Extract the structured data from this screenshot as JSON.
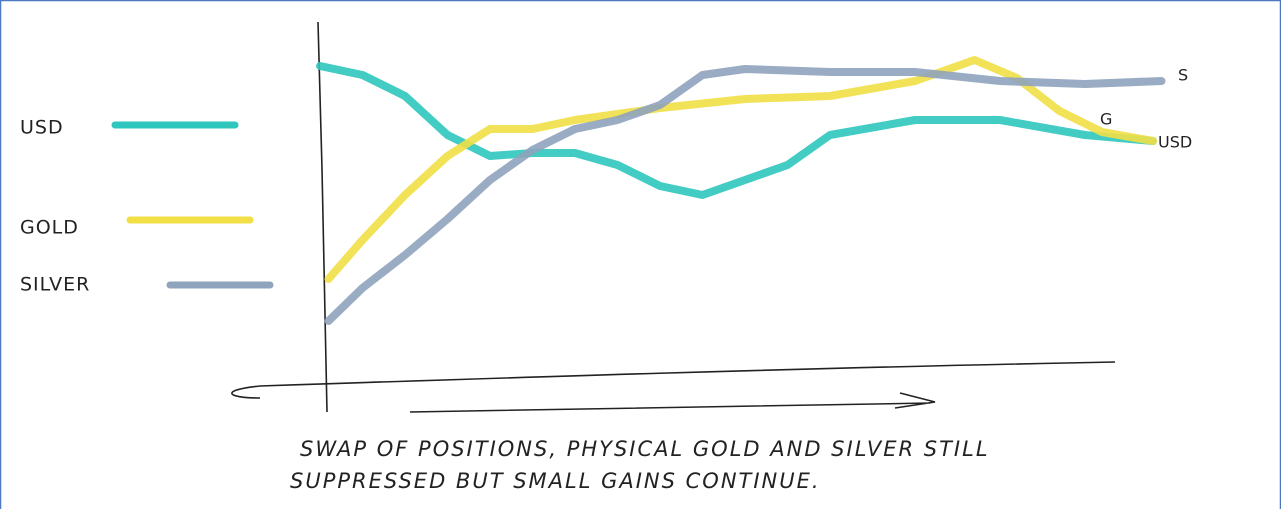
{
  "chart_data": {
    "type": "line",
    "xlim": [
      0,
      100
    ],
    "ylim": [
      0,
      100
    ],
    "series": [
      {
        "name": "USD",
        "color": "#2fc6bd",
        "x": [
          0,
          5,
          10,
          15,
          20,
          25,
          30,
          35,
          40,
          45,
          50,
          55,
          60,
          70,
          80,
          90,
          98
        ],
        "values": [
          98,
          95,
          88,
          75,
          68,
          69,
          69,
          65,
          58,
          55,
          60,
          65,
          75,
          80,
          80,
          75,
          73
        ]
      },
      {
        "name": "GOLD",
        "color": "#f1df45",
        "x": [
          1,
          5,
          10,
          15,
          20,
          25,
          30,
          35,
          40,
          50,
          60,
          70,
          77,
          82,
          87,
          92,
          98
        ],
        "values": [
          27,
          40,
          55,
          68,
          77,
          77,
          80,
          82,
          84,
          87,
          88,
          93,
          100,
          94,
          83,
          76,
          73
        ]
      },
      {
        "name": "SILVER",
        "color": "#8fa3bd",
        "x": [
          1,
          5,
          10,
          15,
          20,
          25,
          30,
          35,
          40,
          45,
          50,
          60,
          70,
          80,
          90,
          99
        ],
        "values": [
          13,
          24,
          35,
          47,
          60,
          70,
          77,
          80,
          85,
          95,
          97,
          96,
          96,
          93,
          92,
          93
        ]
      }
    ],
    "annotations": [
      "S",
      "G",
      "USD"
    ],
    "caption": [
      "SWAP OF POSITIONS, PHYSICAL GOLD AND SILVER STILL",
      "SUPPRESSED BUT SMALL GAINS CONTINUE."
    ]
  }
}
